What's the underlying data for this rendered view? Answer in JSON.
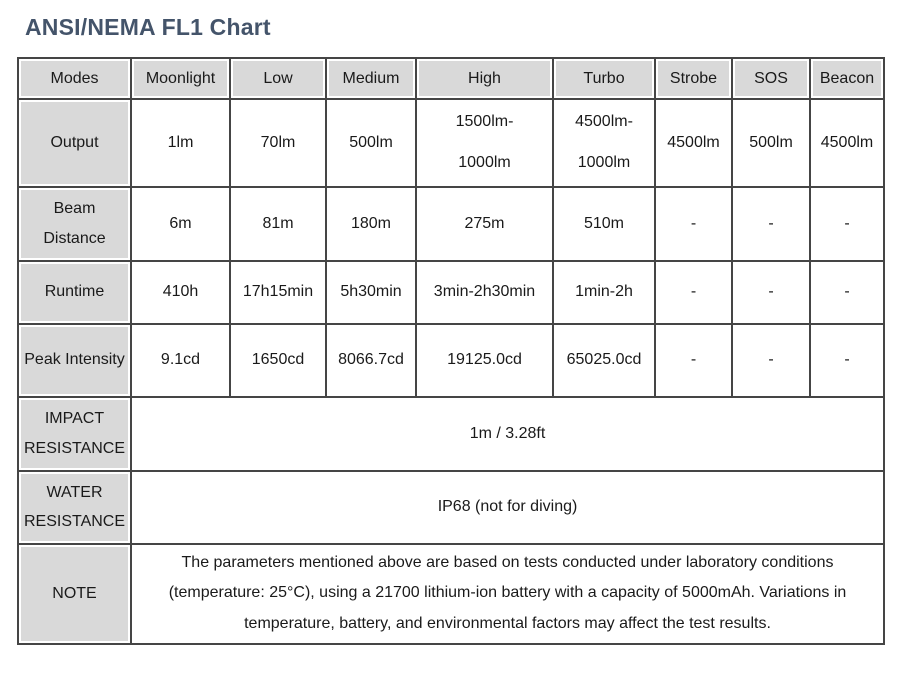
{
  "title": "ANSI/NEMA FL1 Chart",
  "colors": {
    "title_text": "#44546A",
    "header_bg": "#D9D9D9",
    "border": "#454545",
    "body_bg": "#FFFFFF"
  },
  "table": {
    "header": [
      "Modes",
      "Moonlight",
      "Low",
      "Medium",
      "High",
      "Turbo",
      "Strobe",
      "SOS",
      "Beacon"
    ],
    "rows": [
      {
        "label": "Output",
        "values": [
          "1lm",
          "70lm",
          "500lm",
          "1500lm-\n1000lm",
          "4500lm-\n1000lm",
          "4500lm",
          "500lm",
          "4500lm"
        ]
      },
      {
        "label": "Beam Distance",
        "values": [
          "6m",
          "81m",
          "180m",
          "275m",
          "510m",
          "-",
          "-",
          "-"
        ]
      },
      {
        "label": "Runtime",
        "values": [
          "410h",
          "17h15min",
          "5h30min",
          "3min-2h30min",
          "1min-2h",
          "-",
          "-",
          "-"
        ]
      },
      {
        "label": "Peak Intensity",
        "values": [
          "9.1cd",
          "1650cd",
          "8066.7cd",
          "19125.0cd",
          "65025.0cd",
          "-",
          "-",
          "-"
        ]
      }
    ],
    "span_rows": [
      {
        "label": "IMPACT RESISTANCE",
        "value": "1m / 3.28ft"
      },
      {
        "label": "WATER RESISTANCE",
        "value": "IP68 (not for diving)"
      },
      {
        "label": "NOTE",
        "value": "The parameters mentioned above are based on tests conducted under laboratory conditions (temperature: 25°C), using a 21700 lithium-ion battery with a capacity of 5000mAh. Variations in temperature, battery, and environmental factors may affect the test results."
      }
    ]
  }
}
